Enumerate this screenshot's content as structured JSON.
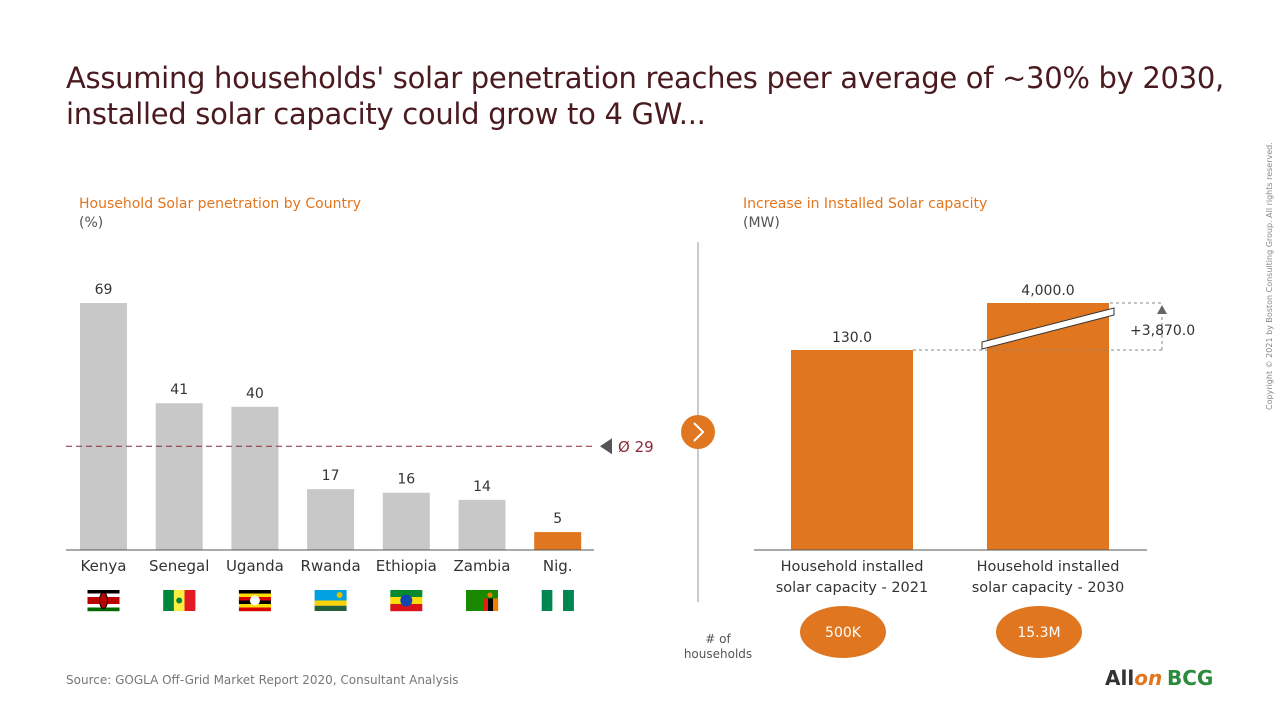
{
  "title_line1": "Assuming households' solar penetration reaches peer average of ~30% by 2030,",
  "title_line2": "installed solar capacity could grow to 4 GW...",
  "colors": {
    "accent": "#e0761f",
    "bar_gray": "#c8c8c8",
    "title": "#4a1a1f",
    "average_line": "#8b2a3a"
  },
  "chart_data": [
    {
      "type": "bar",
      "title": "Household Solar penetration by Country",
      "unit": "(%)",
      "categories": [
        "Kenya",
        "Senegal",
        "Uganda",
        "Rwanda",
        "Ethiopia",
        "Zambia",
        "Nig."
      ],
      "values": [
        69,
        41,
        40,
        17,
        16,
        14,
        5
      ],
      "highlight_index": 6,
      "average": {
        "value": 29,
        "label": "Ø 29"
      },
      "ylim": [
        0,
        69
      ],
      "flags": [
        "kenya-flag",
        "senegal-flag",
        "uganda-flag",
        "rwanda-flag",
        "ethiopia-flag",
        "zambia-flag",
        "nigeria-flag"
      ]
    },
    {
      "type": "bar",
      "title": "Increase in Installed Solar capacity",
      "unit": "(MW)",
      "categories": [
        "Household  installed solar capacity - 2021",
        "Household installed solar capacity - 2030"
      ],
      "category_lines": [
        [
          "Household  installed",
          "solar capacity - 2021"
        ],
        [
          "Household installed",
          "solar capacity - 2030"
        ]
      ],
      "values": [
        130.0,
        4000.0
      ],
      "value_labels": [
        "130.0",
        "4,000.0"
      ],
      "axis_break": true,
      "delta_label": "+3,870.0",
      "households_label_lines": [
        "# of",
        "households"
      ],
      "households": [
        "500K",
        "15.3M"
      ]
    }
  ],
  "source": "Source: GOGLA Off-Grid Market Report 2020, Consultant Analysis",
  "copyright": "Copyright © 2021 by Boston Consulting Group. All rights reserved.",
  "logos": {
    "allon_main": "All",
    "allon_accent": "on",
    "bcg": "BCG"
  }
}
